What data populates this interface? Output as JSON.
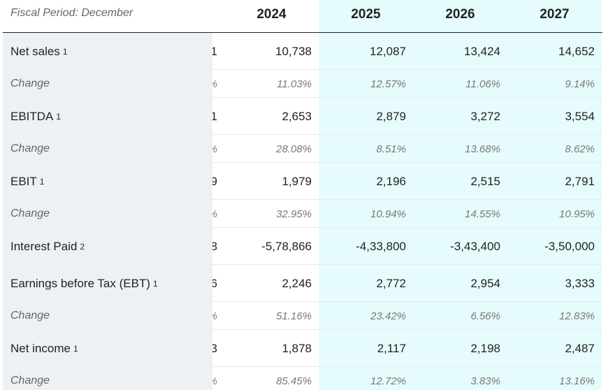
{
  "header": {
    "period_label": "Fiscal Period: December",
    "years": [
      "2024",
      "2025",
      "2026",
      "2027"
    ]
  },
  "rows": [
    {
      "label": "Net sales",
      "sup": "1",
      "clipped": "1",
      "values": [
        "10,738",
        "12,087",
        "13,424",
        "14,652"
      ]
    },
    {
      "label": "Change",
      "clipped": "%",
      "values": [
        "11.03%",
        "12.57%",
        "11.06%",
        "9.14%"
      ]
    },
    {
      "label": "EBITDA",
      "sup": "1",
      "clipped": "1",
      "values": [
        "2,653",
        "2,879",
        "3,272",
        "3,554"
      ]
    },
    {
      "label": "Change",
      "clipped": "%",
      "values": [
        "28.08%",
        "8.51%",
        "13.68%",
        "8.62%"
      ]
    },
    {
      "label": "EBIT",
      "sup": "1",
      "clipped": "9",
      "values": [
        "1,979",
        "2,196",
        "2,515",
        "2,791"
      ]
    },
    {
      "label": "Change",
      "clipped": "%",
      "values": [
        "32.95%",
        "10.94%",
        "14.55%",
        "10.95%"
      ]
    },
    {
      "label": "Interest Paid",
      "sup": "2",
      "clipped": "8",
      "values": [
        "-5,78,866",
        "-4,33,800",
        "-3,43,400",
        "-3,50,000"
      ]
    },
    {
      "label": "Earnings before Tax (EBT)",
      "sup": "1",
      "clipped": "6",
      "values": [
        "2,246",
        "2,772",
        "2,954",
        "3,333"
      ]
    },
    {
      "label": "Change",
      "clipped": "%",
      "values": [
        "51.16%",
        "23.42%",
        "6.56%",
        "12.83%"
      ]
    },
    {
      "label": "Net income",
      "sup": "1",
      "clipped": "3",
      "values": [
        "1,878",
        "2,117",
        "2,198",
        "2,487"
      ]
    },
    {
      "label": "Change",
      "clipped": "%",
      "values": [
        "85.45%",
        "12.72%",
        "3.83%",
        "13.16%"
      ]
    }
  ]
}
